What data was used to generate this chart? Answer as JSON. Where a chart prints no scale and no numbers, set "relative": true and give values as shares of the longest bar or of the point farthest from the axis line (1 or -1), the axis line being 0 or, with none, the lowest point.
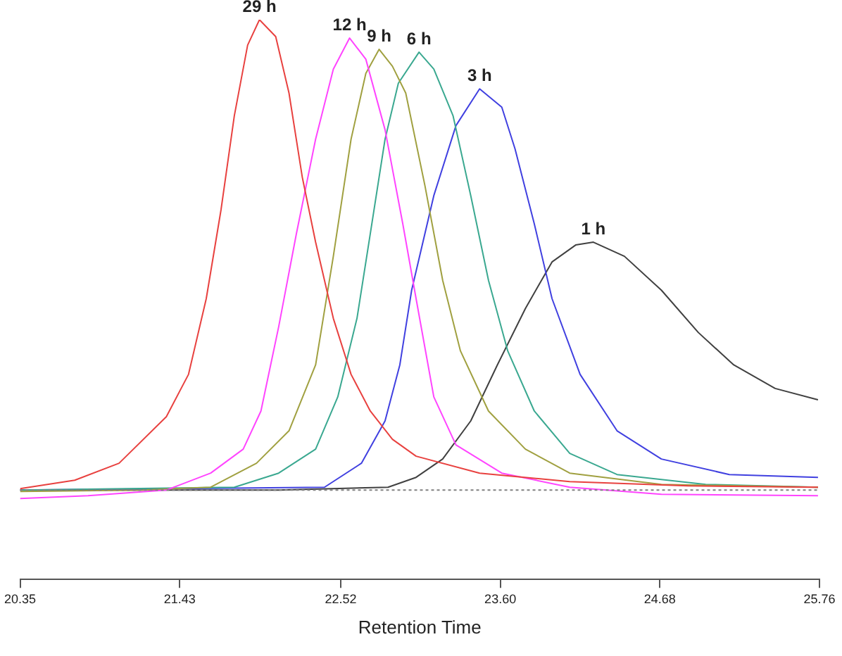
{
  "chart_data": {
    "type": "line",
    "xlabel": "Retention Time",
    "relative": true,
    "xlim": [
      20.35,
      25.76
    ],
    "xticks": [
      20.35,
      21.43,
      22.52,
      {
        "value": 23.6,
        "label": "23.60"
      },
      24.68,
      25.76
    ],
    "tick_labels": "x",
    "grid": false,
    "legend": false,
    "marker": "none",
    "line_style": "solid",
    "ref_lines": [
      {
        "axis": "y",
        "value": 0,
        "color": "#808080",
        "line_style": "dotted"
      }
    ],
    "series": [
      {
        "name": "29 h",
        "color": "#e8413f",
        "x": [
          20.35,
          20.72,
          21.02,
          21.34,
          21.49,
          21.61,
          21.71,
          21.8,
          21.89,
          21.97,
          22.08,
          22.17,
          22.26,
          22.35,
          22.47,
          22.59,
          22.72,
          22.87,
          23.03,
          23.46,
          24.07,
          24.87,
          25.75
        ],
        "values": [
          0.003,
          0.021,
          0.057,
          0.156,
          0.246,
          0.407,
          0.596,
          0.796,
          0.946,
          1,
          0.964,
          0.844,
          0.665,
          0.527,
          0.365,
          0.246,
          0.168,
          0.108,
          0.072,
          0.036,
          0.018,
          0.009,
          0.006
        ]
      },
      {
        "name": "12 h",
        "color": "#ff44ff",
        "x": [
          20.35,
          20.81,
          21.34,
          21.64,
          21.86,
          21.98,
          22.1,
          22.22,
          22.35,
          22.47,
          22.58,
          22.69,
          22.82,
          22.94,
          23.03,
          23.15,
          23.3,
          23.61,
          24.07,
          24.69,
          25.75
        ],
        "values": [
          -0.018,
          -0.012,
          0,
          0.036,
          0.087,
          0.168,
          0.347,
          0.545,
          0.746,
          0.895,
          0.961,
          0.916,
          0.766,
          0.566,
          0.407,
          0.198,
          0.096,
          0.036,
          0.006,
          -0.009,
          -0.012
        ]
      },
      {
        "name": "9 h",
        "color": "#a0a040",
        "x": [
          20.35,
          21.18,
          21.64,
          21.95,
          22.17,
          22.35,
          22.47,
          22.59,
          22.69,
          22.78,
          22.87,
          22.96,
          23.09,
          23.21,
          23.33,
          23.52,
          23.77,
          24.07,
          24.69,
          25.75
        ],
        "values": [
          -0.003,
          0,
          0.006,
          0.057,
          0.126,
          0.266,
          0.497,
          0.746,
          0.886,
          0.937,
          0.901,
          0.844,
          0.647,
          0.446,
          0.296,
          0.168,
          0.087,
          0.036,
          0.012,
          0.006
        ]
      },
      {
        "name": "6 h",
        "color": "#3aa890",
        "x": [
          20.35,
          21.8,
          22.1,
          22.35,
          22.5,
          22.63,
          22.72,
          22.82,
          22.91,
          23.05,
          23.15,
          23.28,
          23.4,
          23.52,
          23.65,
          23.83,
          24.07,
          24.39,
          24.99,
          25.75
        ],
        "values": [
          0,
          0.006,
          0.036,
          0.087,
          0.198,
          0.365,
          0.545,
          0.746,
          0.865,
          0.931,
          0.895,
          0.796,
          0.626,
          0.446,
          0.296,
          0.168,
          0.078,
          0.033,
          0.012,
          0.006
        ]
      },
      {
        "name": "3 h",
        "color": "#4040e0",
        "x": [
          20.35,
          22.41,
          22.66,
          22.82,
          22.92,
          23,
          23.15,
          23.3,
          23.46,
          23.61,
          23.7,
          23.83,
          23.95,
          24.14,
          24.39,
          24.69,
          25.15,
          25.75
        ],
        "values": [
          0,
          0.006,
          0.057,
          0.147,
          0.266,
          0.425,
          0.626,
          0.775,
          0.853,
          0.814,
          0.725,
          0.566,
          0.407,
          0.246,
          0.126,
          0.066,
          0.033,
          0.027
        ]
      },
      {
        "name": "1 h",
        "color": "#404040",
        "x": [
          20.35,
          22.1,
          22.84,
          23.03,
          23.21,
          23.4,
          23.58,
          23.77,
          23.95,
          24.11,
          24.23,
          24.44,
          24.69,
          24.94,
          25.18,
          25.46,
          25.75
        ],
        "values": [
          0,
          0,
          0.006,
          0.027,
          0.066,
          0.147,
          0.266,
          0.386,
          0.485,
          0.521,
          0.527,
          0.497,
          0.425,
          0.335,
          0.266,
          0.216,
          0.192
        ]
      }
    ]
  }
}
